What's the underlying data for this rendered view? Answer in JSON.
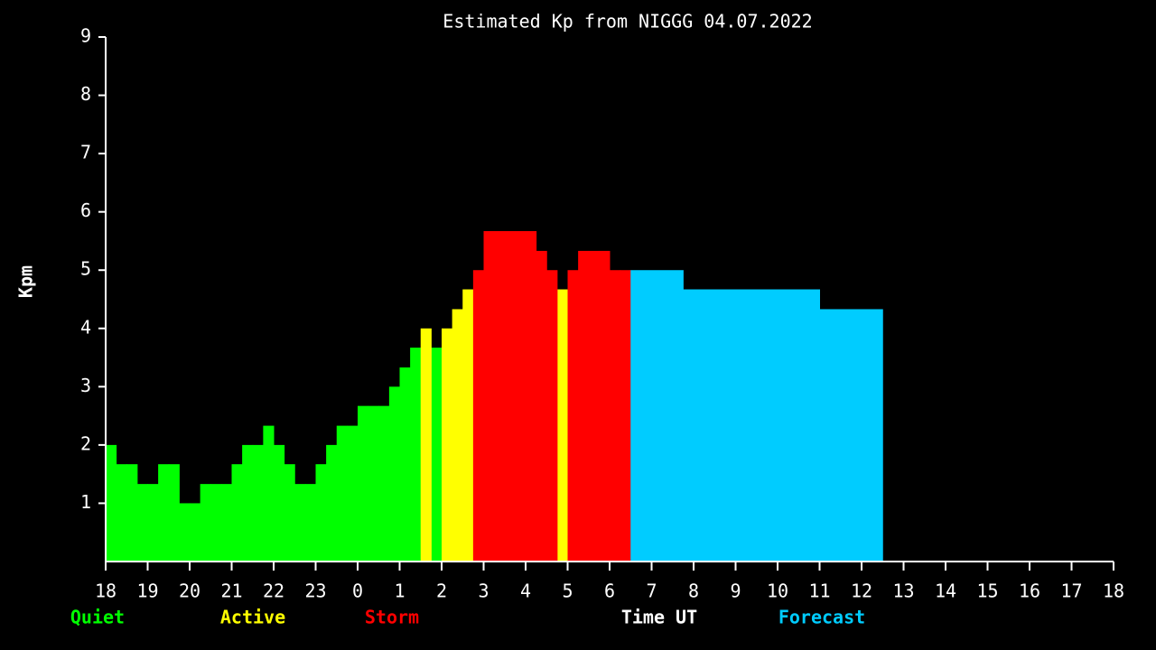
{
  "chart_data": {
    "type": "bar",
    "title": "Estimated Kp from NIGGG 04.07.2022",
    "ylabel": "Kpm",
    "xlabel": "Time UT",
    "xlim": [
      0,
      24
    ],
    "ylim": [
      0,
      9
    ],
    "yticks": [
      1,
      2,
      3,
      4,
      5,
      6,
      7,
      8,
      9
    ],
    "xticks": [
      {
        "value": 0,
        "label": "18"
      },
      {
        "value": 1,
        "label": "19"
      },
      {
        "value": 2,
        "label": "20"
      },
      {
        "value": 3,
        "label": "21"
      },
      {
        "value": 4,
        "label": "22"
      },
      {
        "value": 5,
        "label": "23"
      },
      {
        "value": 6,
        "label": "0"
      },
      {
        "value": 7,
        "label": "1"
      },
      {
        "value": 8,
        "label": "2"
      },
      {
        "value": 9,
        "label": "3"
      },
      {
        "value": 10,
        "label": "4"
      },
      {
        "value": 11,
        "label": "5"
      },
      {
        "value": 12,
        "label": "6"
      },
      {
        "value": 13,
        "label": "7"
      },
      {
        "value": 14,
        "label": "8"
      },
      {
        "value": 15,
        "label": "9"
      },
      {
        "value": 16,
        "label": "10"
      },
      {
        "value": 17,
        "label": "11"
      },
      {
        "value": 18,
        "label": "12"
      },
      {
        "value": 19,
        "label": "13"
      },
      {
        "value": 20,
        "label": "14"
      },
      {
        "value": 21,
        "label": "15"
      },
      {
        "value": 22,
        "label": "16"
      },
      {
        "value": 23,
        "label": "17"
      },
      {
        "value": 24,
        "label": "18"
      }
    ],
    "x": [
      0,
      0.25,
      0.5,
      0.75,
      1,
      1.25,
      1.5,
      1.75,
      2,
      2.25,
      2.5,
      2.75,
      3,
      3.25,
      3.5,
      3.75,
      4,
      4.25,
      4.5,
      4.75,
      5,
      5.25,
      5.5,
      5.75,
      6,
      6.25,
      6.5,
      6.75,
      7,
      7.25,
      7.5,
      7.75,
      8,
      8.25,
      8.5,
      8.75,
      9,
      9.25,
      9.5,
      9.75,
      10,
      10.25,
      10.5,
      10.75,
      11,
      11.25,
      11.5,
      11.75,
      12,
      12.25
    ],
    "series": [
      {
        "name": "Quiet",
        "color": "#00ff00",
        "values": [
          2,
          1.67,
          1.67,
          1.33,
          1.33,
          1.67,
          1.67,
          1,
          1,
          1.33,
          1.33,
          1.33,
          1.67,
          2,
          2,
          2.33,
          2,
          1.67,
          1.33,
          1.33,
          1.67,
          2,
          2.33,
          2.33,
          2.67,
          2.67,
          2.67,
          3,
          3.33,
          3.67,
          null,
          3.67,
          null,
          null,
          null,
          null,
          null,
          null,
          null,
          null,
          null,
          null,
          null,
          null,
          null,
          null,
          null,
          null,
          null,
          null
        ]
      },
      {
        "name": "Active",
        "color": "#ffff00",
        "values": [
          null,
          null,
          null,
          null,
          null,
          null,
          null,
          null,
          null,
          null,
          null,
          null,
          null,
          null,
          null,
          null,
          null,
          null,
          null,
          null,
          null,
          null,
          null,
          null,
          null,
          null,
          null,
          null,
          null,
          null,
          4,
          null,
          4,
          4.33,
          4.67,
          null,
          null,
          null,
          null,
          null,
          null,
          null,
          null,
          4.67,
          null,
          null,
          null,
          null,
          null,
          null
        ]
      },
      {
        "name": "Storm",
        "color": "#ff0000",
        "values": [
          null,
          null,
          null,
          null,
          null,
          null,
          null,
          null,
          null,
          null,
          null,
          null,
          null,
          null,
          null,
          null,
          null,
          null,
          null,
          null,
          null,
          null,
          null,
          null,
          null,
          null,
          null,
          null,
          null,
          null,
          null,
          null,
          null,
          null,
          null,
          5,
          5.67,
          5.67,
          5.67,
          5.67,
          5.67,
          5.33,
          5,
          null,
          5,
          5.33,
          5.33,
          5.33,
          5,
          5
        ]
      }
    ],
    "forecast": {
      "name": "Forecast",
      "color": "#00ccff",
      "bins": [
        12.5,
        13.75,
        17,
        18.5
      ],
      "values": [
        5,
        4.67,
        4.33
      ]
    }
  }
}
